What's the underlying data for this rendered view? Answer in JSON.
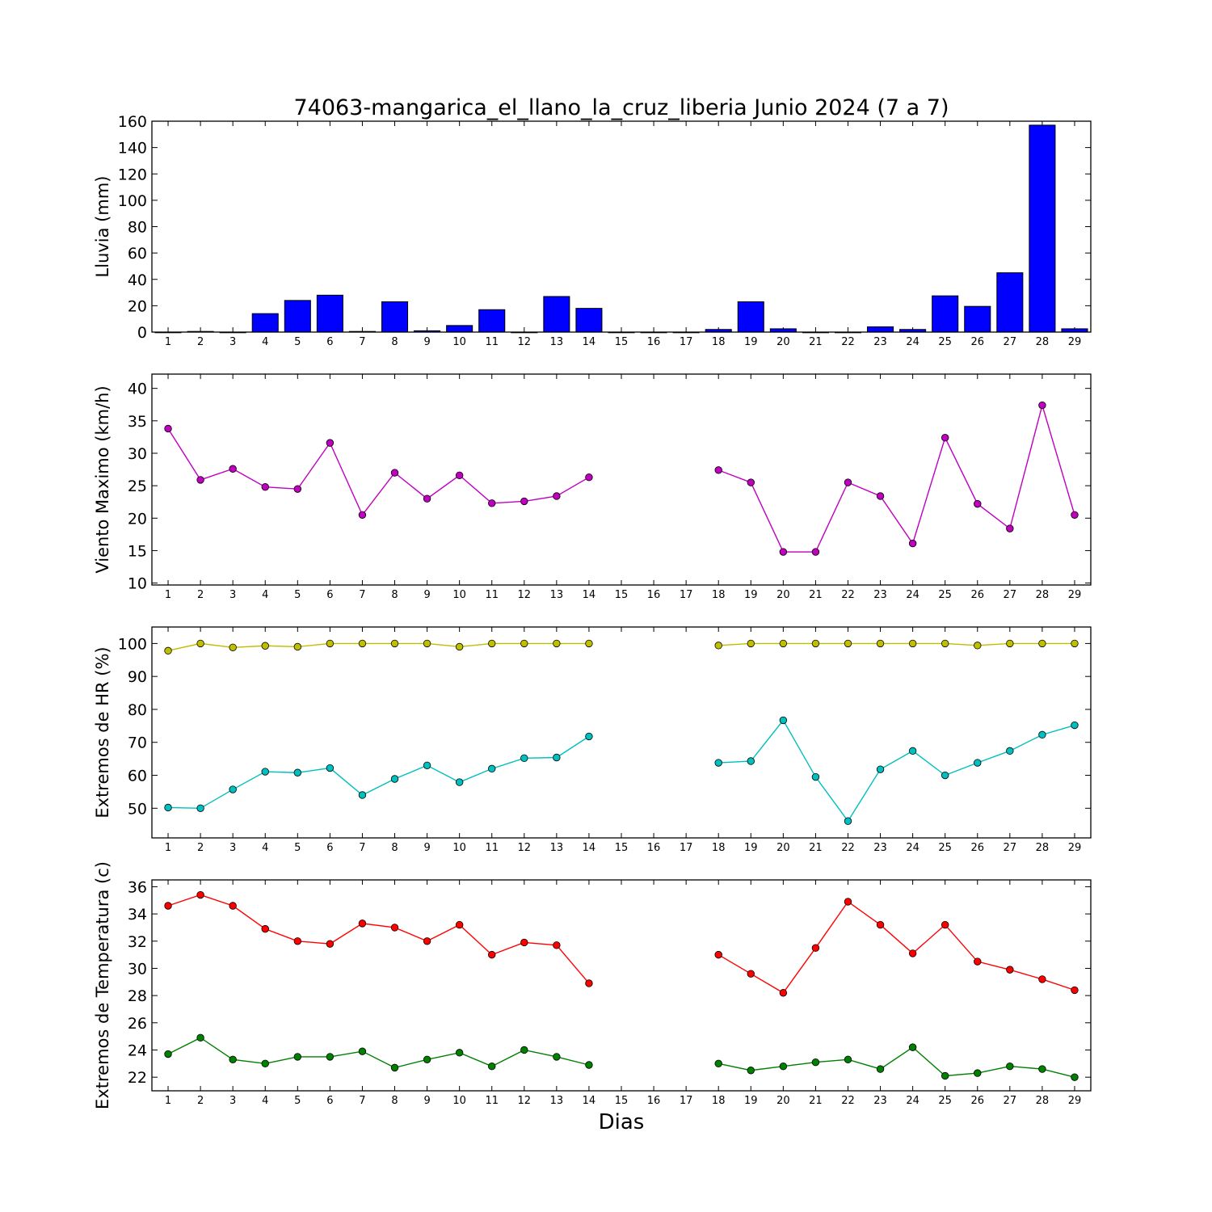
{
  "chart_data": {
    "title": "74063-mangarica_el_llano_la_cruz_liberia Junio 2024  (7 a 7)",
    "xlabel": "Dias",
    "days": [
      1,
      2,
      3,
      4,
      5,
      6,
      7,
      8,
      9,
      10,
      11,
      12,
      13,
      14,
      15,
      16,
      17,
      18,
      19,
      20,
      21,
      22,
      23,
      24,
      25,
      26,
      27,
      28,
      29
    ],
    "panels": [
      {
        "type": "bar",
        "ylabel": "Lluvia (mm)",
        "ylim": [
          0,
          160
        ],
        "yticks": [
          0,
          20,
          40,
          60,
          80,
          100,
          120,
          140,
          160
        ],
        "series": [
          {
            "color": "#0000ff",
            "values": [
              0,
              0.5,
              0,
              14,
              24,
              28,
              0.5,
              23,
              1,
              5,
              17,
              0,
              27,
              18,
              0,
              0,
              0,
              2,
              23,
              2.5,
              0,
              0,
              4,
              2,
              27.5,
              19.5,
              45,
              157,
              2.5
            ]
          }
        ]
      },
      {
        "type": "line",
        "ylabel": "Viento Maximo (km/h)",
        "ylim": [
          9.7,
          42.2
        ],
        "yticks": [
          10,
          15,
          20,
          25,
          30,
          35,
          40
        ],
        "series": [
          {
            "color": "#bf00bf",
            "values": [
              33.8,
              25.9,
              27.6,
              24.8,
              24.5,
              31.6,
              20.5,
              27.0,
              23.0,
              26.6,
              22.3,
              22.6,
              23.4,
              26.3,
              null,
              null,
              null,
              27.4,
              25.5,
              14.8,
              14.8,
              25.5,
              23.4,
              16.1,
              32.4,
              22.2,
              18.4,
              37.4,
              20.5
            ]
          }
        ]
      },
      {
        "type": "line",
        "ylabel": "Extremos de HR (%)",
        "ylim": [
          41,
          105
        ],
        "yticks": [
          50,
          60,
          70,
          80,
          90,
          100
        ],
        "series": [
          {
            "color": "#bfbf00",
            "values": [
              97.8,
              100,
              98.8,
              99.3,
              99.0,
              100,
              100,
              100,
              100,
              99.0,
              100,
              100,
              100,
              100,
              null,
              null,
              null,
              99.4,
              100,
              100,
              100,
              100,
              100,
              100,
              100,
              99.4,
              100,
              100,
              100
            ]
          },
          {
            "color": "#00bfbf",
            "values": [
              50.2,
              50.0,
              55.7,
              61.1,
              60.8,
              62.2,
              54.0,
              58.9,
              63.0,
              57.9,
              62.0,
              65.2,
              65.4,
              71.8,
              null,
              null,
              null,
              63.8,
              64.3,
              76.7,
              59.5,
              46.1,
              61.8,
              67.4,
              60.0,
              63.8,
              67.4,
              72.3,
              75.2
            ]
          }
        ]
      },
      {
        "type": "line",
        "ylabel": "Extremos de Temperatura (c)",
        "ylim": [
          21,
          36.5
        ],
        "yticks": [
          22,
          24,
          26,
          28,
          30,
          32,
          34,
          36
        ],
        "series": [
          {
            "color": "#ff0000",
            "values": [
              34.6,
              35.4,
              34.6,
              32.9,
              32.0,
              31.8,
              33.3,
              33.0,
              32.0,
              33.2,
              31.0,
              31.9,
              31.7,
              28.9,
              null,
              null,
              null,
              31.0,
              29.6,
              28.2,
              31.5,
              34.9,
              33.2,
              31.1,
              33.2,
              30.5,
              29.9,
              29.2,
              28.4
            ]
          },
          {
            "color": "#008000",
            "values": [
              23.7,
              24.9,
              23.3,
              23.0,
              23.5,
              23.5,
              23.9,
              22.7,
              23.3,
              23.8,
              22.8,
              24.0,
              23.5,
              22.9,
              null,
              null,
              null,
              23.0,
              22.5,
              22.8,
              23.1,
              23.3,
              22.6,
              24.2,
              22.1,
              22.3,
              22.8,
              22.6,
              22.0
            ]
          }
        ]
      }
    ]
  }
}
